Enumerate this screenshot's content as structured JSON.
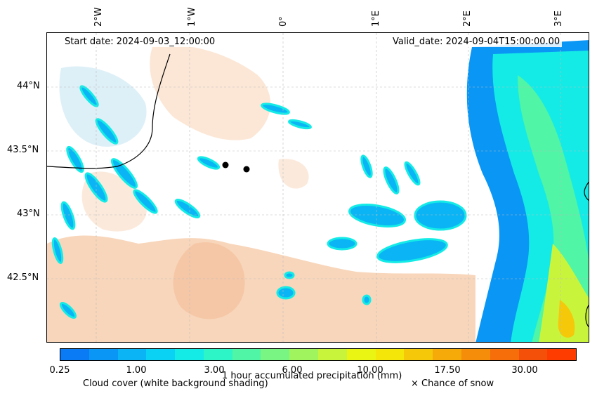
{
  "header": {
    "start_date": "Start date: 2024-09-03_12:00:00",
    "valid_date": "Valid_date: 2024-09-04T15:00:00.00"
  },
  "axes": {
    "lon_labels": [
      "2°W",
      "1°W",
      "0°",
      "1°E",
      "2°E",
      "3°E"
    ],
    "lat_labels": [
      "44°N",
      "43.5°N",
      "43°N",
      "42.5°N"
    ]
  },
  "colorbar": {
    "colors": [
      "#0a7af5",
      "#0a96f5",
      "#0ab4f5",
      "#0ad2f5",
      "#14ebe6",
      "#2df5c8",
      "#50f5a5",
      "#78f582",
      "#a0f55f",
      "#c8f53c",
      "#ebf514",
      "#f5e60a",
      "#f5c80a",
      "#f5aa0a",
      "#f58c0a",
      "#f56e0a",
      "#f5500a",
      "#ff3c00"
    ],
    "tick_labels": [
      "0.25",
      "1.00",
      "3.00",
      "6.00",
      "10.00",
      "17.50",
      "30.00"
    ],
    "label": "1 hour accumulated precipitation (mm)"
  },
  "footer": {
    "cloud_label": "Cloud cover (white background shading)",
    "snow_label": "× Chance of snow"
  }
}
